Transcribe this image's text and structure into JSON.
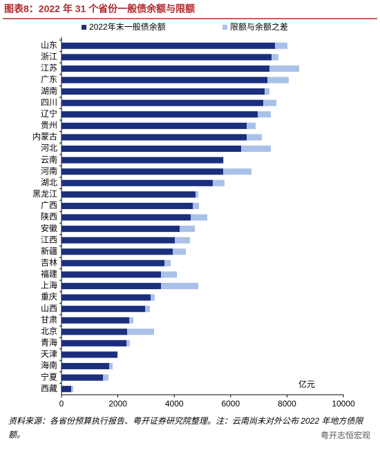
{
  "chart_data": {
    "type": "bar",
    "orientation": "horizontal",
    "stacked": true,
    "title": "图表8：2022 年 31 个省份一般债余额与限额",
    "categories": [
      "山东",
      "浙江",
      "江苏",
      "广东",
      "湖南",
      "四川",
      "辽宁",
      "贵州",
      "内蒙古",
      "河北",
      "云南",
      "河南",
      "湖北",
      "黑龙江",
      "广西",
      "陕西",
      "安徽",
      "江西",
      "新疆",
      "吉林",
      "福建",
      "上海",
      "重庆",
      "山西",
      "甘肃",
      "北京",
      "青海",
      "天津",
      "海南",
      "宁夏",
      "西藏"
    ],
    "series": [
      {
        "name": "2022年末一般债余额",
        "color": "#1b2f7d",
        "values": [
          7574,
          7451,
          7377,
          7304,
          7206,
          7157,
          6961,
          6569,
          6569,
          6373,
          5735,
          5735,
          5368,
          4755,
          4657,
          4583,
          4191,
          4020,
          3946,
          3652,
          3529,
          3529,
          3162,
          2966,
          2402,
          2328,
          2304,
          1985,
          1691,
          1471,
          343
        ]
      },
      {
        "name": "限额与余额之差",
        "color": "#a9c1e8",
        "values": [
          441,
          245,
          1054,
          760,
          171,
          466,
          465,
          318,
          539,
          1053,
          20,
          1005,
          416,
          98,
          220,
          589,
          539,
          539,
          466,
          221,
          564,
          1324,
          147,
          171,
          147,
          956,
          122,
          0,
          123,
          196,
          74
        ]
      }
    ],
    "xlim": [
      0,
      10000
    ],
    "xticks": [
      0,
      2000,
      4000,
      6000,
      8000,
      10000
    ],
    "unit_label": "亿元",
    "legend": "top"
  },
  "note": "资料来源：各省份预算执行报告、粤开证券研究院整理。注：云南尚未对外公布 2022 年地方债限额。",
  "watermark": "粤开志恒宏观"
}
